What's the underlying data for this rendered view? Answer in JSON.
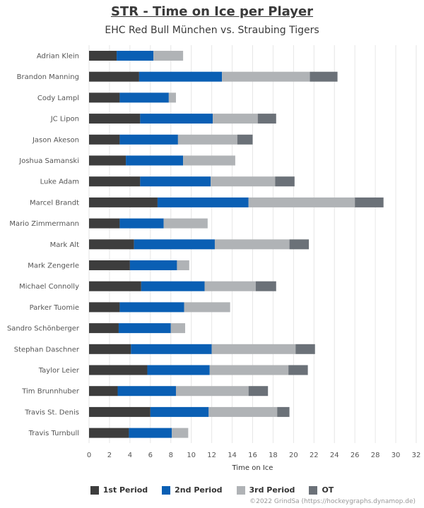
{
  "title": "STR - Time on Ice per Player",
  "subtitle": "EHC Red Bull München vs. Straubing Tigers",
  "credit": "©2022 GrindSa (https://hockeygraphs.dynamop.de)",
  "colors": {
    "p1": "#3d3d3d",
    "p2": "#0a5fb4",
    "p3": "#b0b3b6",
    "ot": "#6b7178",
    "grid": "#e6e6e6",
    "axis_text": "#555555"
  },
  "chart_data": {
    "type": "bar",
    "orientation": "horizontal",
    "stacked": true,
    "xlabel": "Time on Ice",
    "xlim": [
      0,
      32
    ],
    "xticks": [
      0,
      2,
      4,
      6,
      8,
      10,
      12,
      14,
      16,
      18,
      20,
      22,
      24,
      26,
      28,
      30,
      32
    ],
    "grid": "vertical",
    "legend_position": "bottom",
    "categories": [
      "Adrian Klein",
      "Brandon Manning",
      "Cody Lampl",
      "JC Lipon",
      "Jason Akeson",
      "Joshua Samanski",
      "Luke Adam",
      "Marcel Brandt",
      "Mario Zimmermann",
      "Mark Alt",
      "Mark Zengerle",
      "Michael Connolly",
      "Parker Tuomie",
      "Sandro Schönberger",
      "Stephan Daschner",
      "Taylor Leier",
      "Tim Brunnhuber",
      "Travis St. Denis",
      "Travis Turnbull"
    ],
    "series": [
      {
        "name": "1st Period",
        "color_key": "p1",
        "values": [
          2.7,
          4.9,
          3.0,
          5.0,
          3.0,
          3.6,
          5.0,
          6.7,
          3.0,
          4.4,
          4.0,
          5.1,
          3.0,
          2.9,
          4.1,
          5.7,
          2.8,
          6.0,
          3.9
        ]
      },
      {
        "name": "2nd Period",
        "color_key": "p2",
        "values": [
          3.6,
          8.1,
          4.8,
          7.1,
          5.7,
          5.6,
          6.9,
          8.9,
          4.3,
          7.9,
          4.6,
          6.2,
          6.3,
          5.1,
          7.9,
          6.1,
          5.7,
          5.7,
          4.2
        ]
      },
      {
        "name": "3rd Period",
        "color_key": "p3",
        "values": [
          2.9,
          8.6,
          0.7,
          4.4,
          5.8,
          5.1,
          6.3,
          10.4,
          4.3,
          7.3,
          1.2,
          5.0,
          4.5,
          1.4,
          8.2,
          7.7,
          7.1,
          6.7,
          1.6
        ]
      },
      {
        "name": "OT",
        "color_key": "ot",
        "values": [
          0,
          2.7,
          0,
          1.8,
          1.5,
          0,
          1.9,
          2.8,
          0,
          1.9,
          0,
          2.0,
          0,
          0,
          1.9,
          1.9,
          1.9,
          1.2,
          0
        ]
      }
    ]
  }
}
